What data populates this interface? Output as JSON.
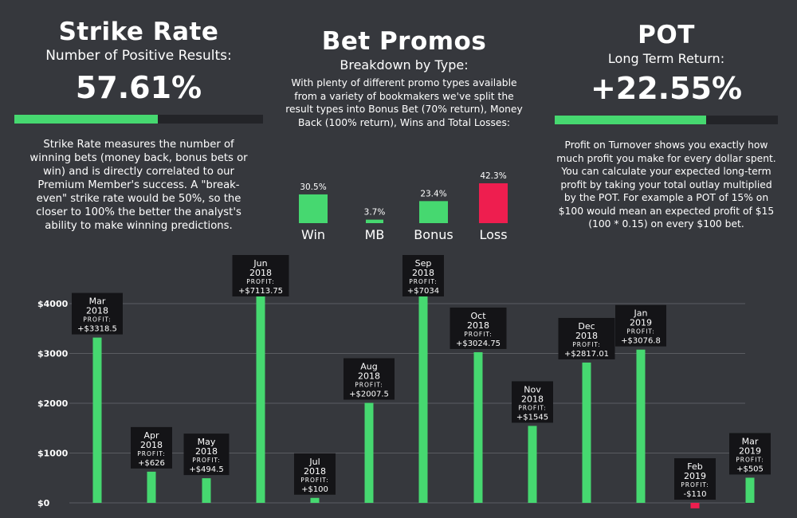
{
  "strike": {
    "title": "Strike Rate",
    "subtitle": "Number of Positive Results:",
    "value": "57.61%",
    "progress": 0.5761,
    "description": "Strike Rate measures the number of winning bets (money back, bonus bets or win) and is directly correlated to our Premium Member's success. A \"break-even\" strike rate would be 50%, so the closer to 100% the better the analyst's ability to make winning predictions."
  },
  "promos": {
    "title": "Bet Promos",
    "subtitle": "Breakdown by Type:",
    "description": "With plenty of different promo types available from a variety of bookmakers we've split the result types into Bonus Bet (70% return), Money Back (100% return), Wins and Total Losses:",
    "types": [
      {
        "label": "Win",
        "value": 30.5,
        "value_label": "30.5%",
        "color": "#46d870"
      },
      {
        "label": "MB",
        "value": 3.7,
        "value_label": "3.7%",
        "color": "#46d870"
      },
      {
        "label": "Bonus",
        "value": 23.4,
        "value_label": "23.4%",
        "color": "#46d870"
      },
      {
        "label": "Loss",
        "value": 42.3,
        "value_label": "42.3%",
        "color": "#ee1e4f"
      }
    ]
  },
  "pot": {
    "title": "POT",
    "subtitle": "Long Term Return:",
    "value": "+22.55%",
    "progress": 0.68,
    "description": "Profit on Turnover shows you exactly how much profit you make for every dollar spent. You can calculate your expected long-term profit by taking your total outlay multiplied by the POT. For example a POT of 15% on $100 would mean an expected profit of $15 (100 * 0.15) on every $100 bet."
  },
  "colors": {
    "background": "#36383d",
    "positive": "#46d870",
    "negative": "#ee1e4f",
    "track": "#232428",
    "label_bg": "#141417"
  },
  "chart_data": {
    "type": "bar",
    "yticks": [
      "$0",
      "$1000",
      "$2000",
      "$3000",
      "$4000"
    ],
    "ylim": [
      0,
      4200
    ],
    "profit_label": "PROFIT:",
    "series": [
      {
        "month": "Mar",
        "year": "2018",
        "value": 3318.5,
        "label": "+$3318.5"
      },
      {
        "month": "Apr",
        "year": "2018",
        "value": 626,
        "label": "+$626"
      },
      {
        "month": "May",
        "year": "2018",
        "value": 494.5,
        "label": "+$494.5"
      },
      {
        "month": "Jun",
        "year": "2018",
        "value": 7113.75,
        "label": "+$7113.75"
      },
      {
        "month": "Jul",
        "year": "2018",
        "value": 100,
        "label": "+$100"
      },
      {
        "month": "Aug",
        "year": "2018",
        "value": 2007.5,
        "label": "+$2007.5"
      },
      {
        "month": "Sep",
        "year": "2018",
        "value": 7034,
        "label": "+$7034"
      },
      {
        "month": "Oct",
        "year": "2018",
        "value": 3024.75,
        "label": "+$3024.75"
      },
      {
        "month": "Nov",
        "year": "2018",
        "value": 1545,
        "label": "+$1545"
      },
      {
        "month": "Dec",
        "year": "2018",
        "value": 2817.01,
        "label": "+$2817.01"
      },
      {
        "month": "Jan",
        "year": "2019",
        "value": 3076.8,
        "label": "+$3076.8"
      },
      {
        "month": "Feb",
        "year": "2019",
        "value": -110,
        "label": "-$110"
      },
      {
        "month": "Mar",
        "year": "2019",
        "value": 505,
        "label": "+$505"
      }
    ]
  }
}
